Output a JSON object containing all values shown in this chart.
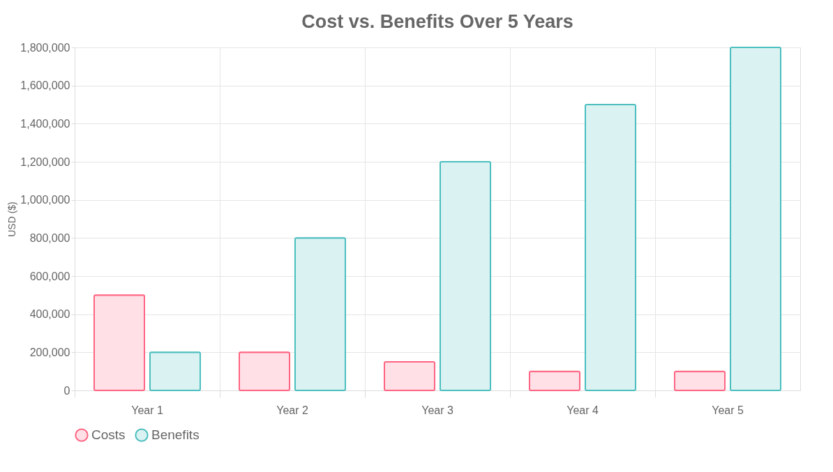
{
  "chart_data": {
    "type": "bar",
    "title": "Cost vs. Benefits Over 5 Years",
    "ylabel": "USD ($)",
    "categories": [
      "Year 1",
      "Year 2",
      "Year 3",
      "Year 4",
      "Year 5"
    ],
    "series": [
      {
        "name": "Costs",
        "color": "#ffe0e6",
        "values": [
          500000,
          200000,
          150000,
          100000,
          100000
        ]
      },
      {
        "name": "Benefits",
        "color": "#dbf2f2",
        "values": [
          200000,
          800000,
          1200000,
          1500000,
          1800000
        ]
      }
    ],
    "ylim": [
      0,
      1800000
    ],
    "yticks": [
      0,
      {
        "value": 200000,
        "label": "200,000"
      },
      {
        "value": 400000,
        "label": "400,000"
      },
      {
        "value": 600000,
        "label": "600,000"
      },
      {
        "value": 800000,
        "label": "800,000"
      },
      {
        "value": 1000000,
        "label": "1,000,000"
      },
      {
        "value": 1200000,
        "label": "1,200,000"
      },
      {
        "value": 1400000,
        "label": "1,400,000"
      },
      {
        "value": 1600000,
        "label": "1,600,000"
      },
      {
        "value": 1800000,
        "label": "1,800,000"
      }
    ],
    "grid": true,
    "legend": "bottom"
  }
}
